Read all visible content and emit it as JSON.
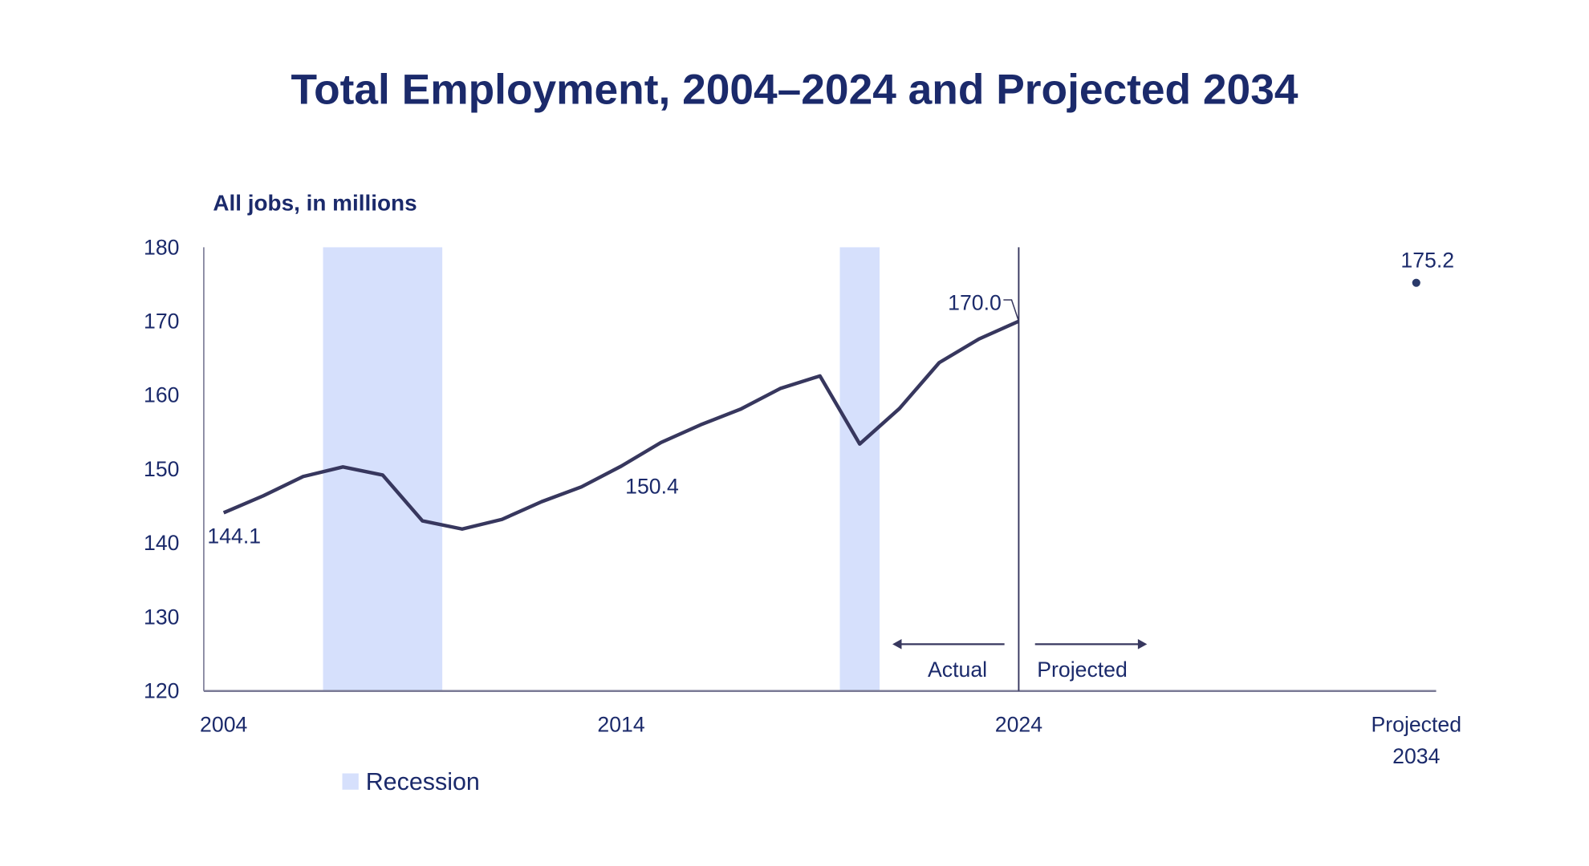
{
  "chart_data": {
    "type": "line",
    "title": "Total Employment, 2004–2024 and Projected 2034",
    "ylabel": "All jobs, in millions",
    "xlabel": "",
    "ylim": [
      120,
      180
    ],
    "xlim": [
      2003.5,
      2034.5
    ],
    "yticks": [
      120,
      130,
      140,
      150,
      160,
      170,
      180
    ],
    "xticks": [
      {
        "value": 2004,
        "label": [
          "2004"
        ]
      },
      {
        "value": 2014,
        "label": [
          "2014"
        ]
      },
      {
        "value": 2024,
        "label": [
          "2024"
        ]
      },
      {
        "value": 2034,
        "label": [
          "Projected",
          "2034"
        ]
      }
    ],
    "grid": false,
    "series": [
      {
        "name": "Total employment",
        "color": "#37375e",
        "x": [
          2004,
          2005,
          2006,
          2007,
          2008,
          2009,
          2010,
          2011,
          2012,
          2013,
          2014,
          2015,
          2016,
          2017,
          2018,
          2019,
          2020,
          2021,
          2022,
          2023,
          2024
        ],
        "values": [
          144.1,
          146.4,
          149.0,
          150.3,
          149.2,
          143.0,
          141.9,
          143.2,
          145.6,
          147.6,
          150.4,
          153.6,
          156.0,
          158.1,
          160.9,
          162.6,
          153.4,
          158.2,
          164.4,
          167.6,
          170.0
        ]
      }
    ],
    "projected_point": {
      "x": 2034,
      "value": 175.2,
      "label": "175.2"
    },
    "data_labels": [
      {
        "x": 2004,
        "value": 144.1,
        "label": "144.1"
      },
      {
        "x": 2014,
        "value": 150.4,
        "label": "150.4"
      },
      {
        "x": 2024,
        "value": 170.0,
        "label": "170.0"
      }
    ],
    "recessions": [
      [
        2006.5,
        2009.5
      ],
      [
        2019.5,
        2020.5
      ]
    ],
    "recession_color": "#d6e0fc",
    "divider_year": 2024,
    "annotations": {
      "actual": "Actual",
      "projected": "Projected"
    },
    "legend": {
      "label": "Recession",
      "placement": "bottom-left"
    }
  }
}
